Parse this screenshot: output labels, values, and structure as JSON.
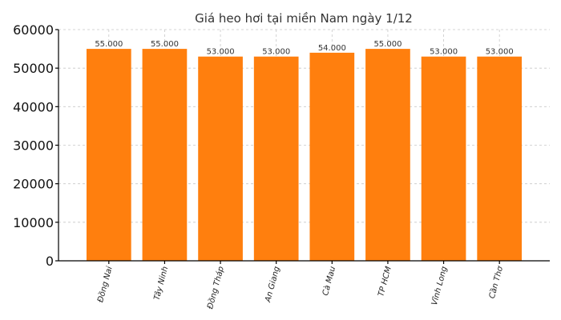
{
  "chart_data": {
    "type": "bar",
    "title": "Giá heo hơi tại miền Nam ngày 1/12",
    "xlabel": "",
    "ylabel": "",
    "categories": [
      "Đồng Nai",
      "Tây Ninh",
      "Đồng Tháp",
      "An Giang",
      "Cà Mau",
      "TP HCM",
      "Vĩnh Long",
      "Cần Thơ"
    ],
    "values": [
      55000,
      55000,
      53000,
      53000,
      54000,
      55000,
      53000,
      53000
    ],
    "data_labels": [
      "55.000",
      "55.000",
      "53.000",
      "53.000",
      "54.000",
      "55.000",
      "53.000",
      "53.000"
    ],
    "ylim": [
      0,
      60000
    ],
    "yticks": [
      0,
      10000,
      20000,
      30000,
      40000,
      50000,
      60000
    ],
    "ytick_labels": [
      "0",
      "10000",
      "20000",
      "30000",
      "40000",
      "50000",
      "60000"
    ],
    "grid": true,
    "bar_color": "#ff7f0e"
  }
}
